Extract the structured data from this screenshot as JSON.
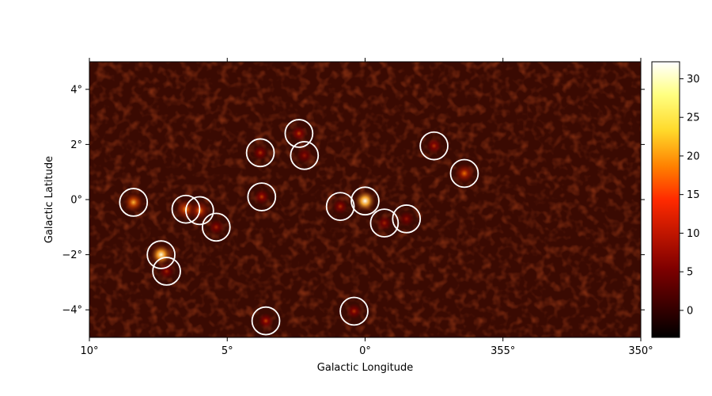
{
  "chart_data": {
    "type": "heatmap",
    "title": "",
    "xlabel": "Galactic Longitude",
    "ylabel": "Galactic Latitude",
    "xlim": [
      10,
      350
    ],
    "ylim": [
      -5,
      5
    ],
    "x_ticks": [
      {
        "value": 10,
        "label": "10°"
      },
      {
        "value": 5,
        "label": "5°"
      },
      {
        "value": 0,
        "label": "0°"
      },
      {
        "value": 355,
        "label": "355°"
      },
      {
        "value": 350,
        "label": "350°"
      }
    ],
    "y_ticks": [
      {
        "value": 4,
        "label": "4°"
      },
      {
        "value": 2,
        "label": "2°"
      },
      {
        "value": 0,
        "label": "0°"
      },
      {
        "value": -2,
        "label": "−2°"
      },
      {
        "value": -4,
        "label": "−4°"
      }
    ],
    "colorbar": {
      "colormap": "afmhot",
      "range": [
        -3.5,
        32.2
      ],
      "ticks": [
        {
          "value": 0,
          "label": "0"
        },
        {
          "value": 5,
          "label": "5"
        },
        {
          "value": 10,
          "label": "10"
        },
        {
          "value": 15,
          "label": "15"
        },
        {
          "value": 20,
          "label": "20"
        },
        {
          "value": 25,
          "label": "25"
        },
        {
          "value": 30,
          "label": "30"
        }
      ]
    },
    "circle_radius_deg": 0.5,
    "sources": [
      {
        "l": 8.4,
        "b": -0.1,
        "peak": 18
      },
      {
        "l": 7.4,
        "b": -2.0,
        "peak": 30
      },
      {
        "l": 7.2,
        "b": -2.6,
        "peak": 8
      },
      {
        "l": 6.5,
        "b": -0.35,
        "peak": 16
      },
      {
        "l": 6.0,
        "b": -0.4,
        "peak": 14
      },
      {
        "l": 5.4,
        "b": -1.0,
        "peak": 8
      },
      {
        "l": 3.8,
        "b": 1.7,
        "peak": 9
      },
      {
        "l": 3.75,
        "b": 0.1,
        "peak": 10
      },
      {
        "l": 3.6,
        "b": -4.4,
        "peak": 10
      },
      {
        "l": 2.4,
        "b": 2.4,
        "peak": 10
      },
      {
        "l": 2.2,
        "b": 1.6,
        "peak": 7
      },
      {
        "l": 0.9,
        "b": -0.25,
        "peak": 9
      },
      {
        "l": 0.4,
        "b": -4.05,
        "peak": 9
      },
      {
        "l": 0.0,
        "b": -0.05,
        "peak": 32
      },
      {
        "l": 359.3,
        "b": -0.85,
        "peak": 8
      },
      {
        "l": 358.5,
        "b": -0.7,
        "peak": 7
      },
      {
        "l": 357.5,
        "b": 1.95,
        "peak": 9
      },
      {
        "l": 356.4,
        "b": 0.95,
        "peak": 13
      }
    ],
    "colors": {
      "circle": "#ffffff",
      "frame": "#000000"
    }
  }
}
